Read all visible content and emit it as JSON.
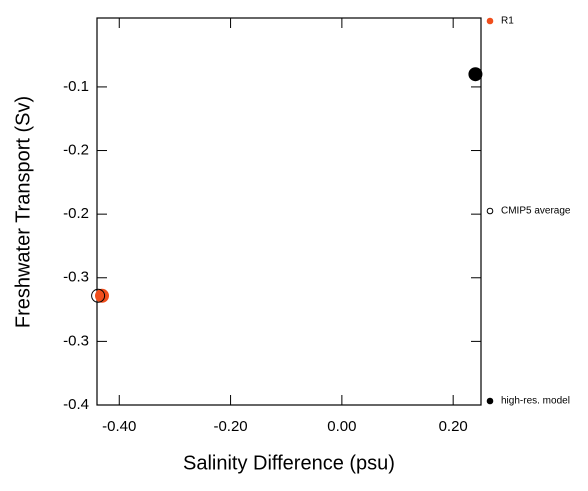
{
  "chart_data": {
    "type": "scatter",
    "xlabel": "Salinity Difference (psu)",
    "ylabel": "Freshwater Transport (Sv)",
    "xlim": [
      -0.44,
      0.25
    ],
    "ylim": [
      -0.4,
      -0.035
    ],
    "xticks": [
      {
        "value": -0.4,
        "label": "-0.40"
      },
      {
        "value": -0.2,
        "label": "-0.20"
      },
      {
        "value": 0,
        "label": "0.00"
      },
      {
        "value": 0.2,
        "label": "0.20"
      }
    ],
    "yticks": [
      -0.1,
      {
        "value": -0.16,
        "label": "-0.2"
      },
      {
        "value": -0.22,
        "label": "-0.2"
      },
      {
        "value": -0.28,
        "label": "-0.3"
      },
      {
        "value": -0.34,
        "label": "-0.3"
      },
      -0.4
    ],
    "legend": "right",
    "series": [
      {
        "name": "R1",
        "color": "#f04e1c",
        "marker": "filled",
        "x": [
          -0.431
        ],
        "values": [
          -0.297
        ]
      },
      {
        "name": "CMIP5 average",
        "color": "#000000",
        "marker": "open",
        "x": [
          -0.438
        ],
        "values": [
          -0.297
        ]
      },
      {
        "name": "high-res. model",
        "color": "#000000",
        "marker": "filled",
        "x": [
          0.24
        ],
        "values": [
          -0.088
        ]
      }
    ]
  }
}
